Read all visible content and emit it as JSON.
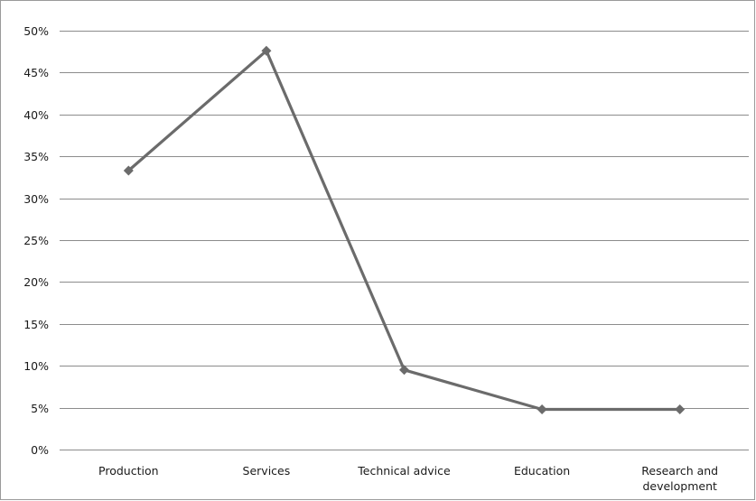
{
  "chart_data": {
    "type": "line",
    "title": "",
    "xlabel": "",
    "ylabel": "",
    "categories": [
      "Production",
      "Services",
      "Technical advice",
      "Education",
      "Research and development"
    ],
    "category_label_lines": [
      [
        "Production"
      ],
      [
        "Services"
      ],
      [
        "Technical advice"
      ],
      [
        "Education"
      ],
      [
        "Research and",
        "development"
      ]
    ],
    "series": [
      {
        "values": [
          0.333,
          0.476,
          0.095,
          0.048,
          0.048
        ],
        "color": "#6b6b6b",
        "marker": "diamond"
      }
    ],
    "ylim": [
      0,
      0.5
    ],
    "yticks": [
      0,
      0.05,
      0.1,
      0.15,
      0.2,
      0.25,
      0.3,
      0.35,
      0.4,
      0.45,
      0.5
    ],
    "ytick_labels": [
      "0%",
      "5%",
      "10%",
      "15%",
      "20%",
      "25%",
      "30%",
      "35%",
      "40%",
      "45%",
      "50%"
    ],
    "grid": true,
    "legend": "none",
    "colors": {
      "gridline": "#8c8c8c",
      "line": "#6b6b6b",
      "text": "#1a1a1a"
    }
  }
}
